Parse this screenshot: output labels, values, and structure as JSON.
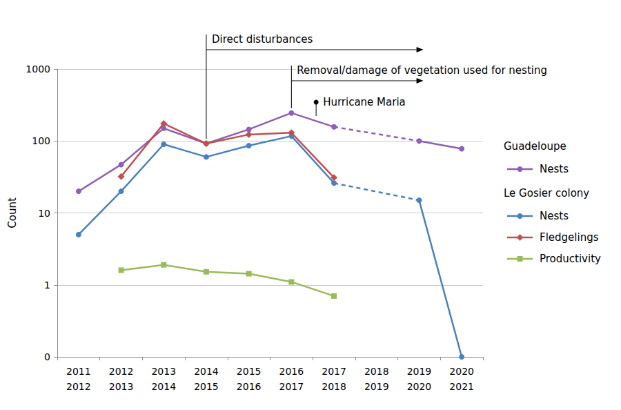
{
  "chart_data": {
    "type": "line",
    "y_label": "Count",
    "log": "y",
    "grid": true,
    "legend": "right",
    "categories": [
      "2011\n2012",
      "2012\n2013",
      "2013\n2014",
      "2014\n2015",
      "2015\n2016",
      "2016\n2017",
      "2017\n2018",
      "2018\n2019",
      "2019\n2020",
      "2020\n2021"
    ],
    "ylim": [
      0.1,
      1000
    ],
    "yticks": [
      {
        "value": 0.1,
        "label": "0"
      },
      1,
      10,
      100,
      1000
    ],
    "series": [
      {
        "name": "Nests",
        "group": "Guadeloupe",
        "color": "#8e5fb8",
        "marker": "circle",
        "line_style": "dashed_gaps",
        "values": [
          20,
          47,
          150,
          92,
          145,
          245,
          157,
          null,
          100,
          78
        ]
      },
      {
        "name": "Nests",
        "group": "Le Gosier colony",
        "color": "#4a80c2",
        "marker": "circle",
        "line_style": "dashed_gaps",
        "values": [
          5,
          20,
          90,
          60,
          86,
          117,
          26,
          null,
          15,
          0.1
        ]
      },
      {
        "name": "Fledgelings",
        "group": "Le Gosier colony",
        "color": "#c0504d",
        "marker": "diamond",
        "line_style": "solid",
        "values": [
          null,
          32,
          175,
          92,
          123,
          130,
          31,
          null,
          null,
          null
        ]
      },
      {
        "name": "Productivity",
        "group": "Le Gosier colony",
        "color": "#9bbb59",
        "marker": "square",
        "line_style": "solid",
        "values": [
          null,
          1.6,
          1.9,
          1.52,
          1.43,
          1.1,
          0.7,
          null,
          null,
          null
        ]
      }
    ],
    "annotations": [
      {
        "text": "Direct disturbances",
        "x": "2014\n2015",
        "x_end": "2019\n2020"
      },
      {
        "text": "Removal/damage of vegetation used for nesting",
        "x": "2016\n2017",
        "x_end": "2019\n2020"
      },
      {
        "text": "Hurricane Maria",
        "x": "2017\n2018"
      }
    ]
  }
}
